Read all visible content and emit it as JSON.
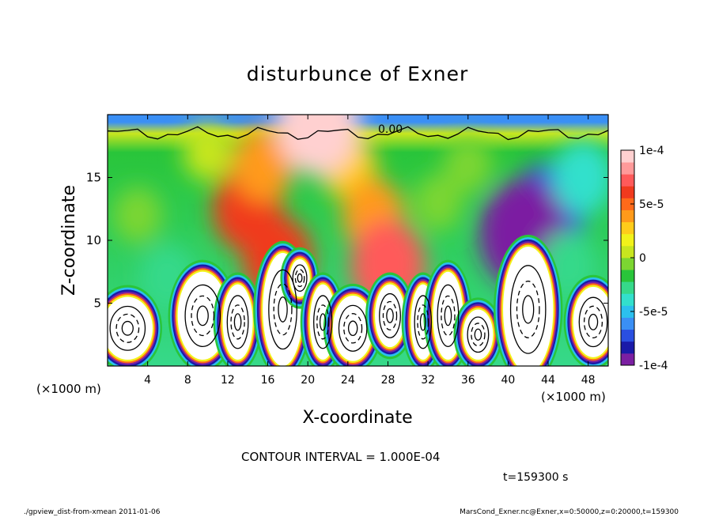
{
  "chart_data": {
    "type": "heatmap",
    "title": "disturbunce of Exner",
    "xlabel": "X-coordinate",
    "ylabel": "Z-coordinate",
    "x_unit": "(×1000 m)",
    "x_unit_right": "(×1000 m)",
    "xlim": [
      0,
      50
    ],
    "ylim": [
      0,
      20
    ],
    "xticks": [
      "4",
      "8",
      "12",
      "16",
      "20",
      "24",
      "28",
      "32",
      "36",
      "40",
      "44",
      "48"
    ],
    "yticks": [
      "5",
      "10",
      "15"
    ],
    "colorbar": {
      "range": [
        -0.0001,
        0.0001
      ],
      "tick_labels": [
        "1e-4",
        "5e-5",
        "0",
        "-5e-5",
        "-1e-4"
      ],
      "colors": [
        "#7b1fa2",
        "#1a1aa8",
        "#2a4fe0",
        "#3a8ff5",
        "#2bc0ee",
        "#33e0cc",
        "#36d98a",
        "#29c53a",
        "#7cd631",
        "#c8e61f",
        "#f2f21a",
        "#ffcc1a",
        "#ff9a1a",
        "#ff6a1a",
        "#f03a1e",
        "#ff5a5a",
        "#ff9a9a",
        "#ffd0d0"
      ]
    },
    "contour_labels": [
      "0.00"
    ],
    "contour_interval_text": "CONTOUR INTERVAL = 1.000E-04",
    "time_text": "t=159300 s",
    "grid": false,
    "legend": "colorbar-right",
    "anomalies": [
      {
        "x": 14,
        "z": 12.5,
        "value": 6e-05
      },
      {
        "x": 15.5,
        "z": 16,
        "value": 4e-05
      },
      {
        "x": 17,
        "z": 8.5,
        "value": 6e-05
      },
      {
        "x": 24,
        "z": 16,
        "value": 3e-05
      },
      {
        "x": 26.5,
        "z": 12,
        "value": 4e-05
      },
      {
        "x": 28,
        "z": 8,
        "value": 7e-05
      },
      {
        "x": 21,
        "z": 19.3,
        "value": 9e-05
      },
      {
        "x": 44,
        "z": 12.5,
        "value": -7e-05
      },
      {
        "x": 41.5,
        "z": 10.5,
        "value": -0.0001
      },
      {
        "x": 47.5,
        "z": 15,
        "value": -4e-05
      },
      {
        "x": 46,
        "z": 8,
        "value": -3e-05
      },
      {
        "x": 6,
        "z": 7,
        "value": -3e-05
      },
      {
        "x": 3,
        "z": 12,
        "value": -1e-05
      },
      {
        "x": 33,
        "z": 13,
        "value": -1e-05
      },
      {
        "x": 36,
        "z": 16,
        "value": -1e-05
      },
      {
        "x": 10,
        "z": 17,
        "value": 1e-05
      }
    ],
    "saturated_regions": [
      {
        "x": 2,
        "z": 3,
        "rx": 2.5,
        "rz": 2.5
      },
      {
        "x": 9.5,
        "z": 4,
        "rx": 2.5,
        "rz": 3.5
      },
      {
        "x": 13,
        "z": 3.5,
        "rx": 1.5,
        "rz": 3
      },
      {
        "x": 17.5,
        "z": 4.5,
        "rx": 2,
        "rz": 4.5
      },
      {
        "x": 19.2,
        "z": 7,
        "rx": 1,
        "rz": 1.5
      },
      {
        "x": 21.5,
        "z": 3.5,
        "rx": 1.3,
        "rz": 3
      },
      {
        "x": 24.5,
        "z": 3,
        "rx": 2,
        "rz": 2.6
      },
      {
        "x": 28.2,
        "z": 4,
        "rx": 1.5,
        "rz": 2.5
      },
      {
        "x": 31.5,
        "z": 3.5,
        "rx": 1.2,
        "rz": 3
      },
      {
        "x": 34,
        "z": 4,
        "rx": 1.5,
        "rz": 3.5
      },
      {
        "x": 37,
        "z": 2.5,
        "rx": 1.5,
        "rz": 2
      },
      {
        "x": 42,
        "z": 4.5,
        "rx": 2.5,
        "rz": 5
      },
      {
        "x": 48.5,
        "z": 3.5,
        "rx": 2,
        "rz": 2.8
      }
    ],
    "vertical_levels": [
      {
        "z": 19.4,
        "value": -6e-05
      },
      {
        "z": 18.5,
        "value": 0
      },
      {
        "z": 17,
        "value": -1.5e-05
      }
    ]
  },
  "footer": {
    "left": "./gpview_dist-from-xmean  2011-01-06",
    "right": "MarsCond_Exner.nc@Exner,x=0:50000,z=0:20000,t=159300"
  }
}
